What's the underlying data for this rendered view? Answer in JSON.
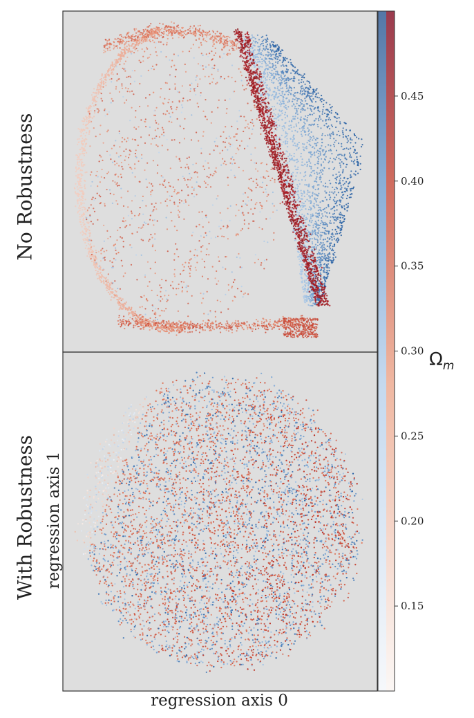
{
  "chart_data": [
    {
      "type": "scatter",
      "panel_label": "No Robustness",
      "description_points": "dense latent embedding forming a rounded shape with a sharp red ridge",
      "xlabel": "",
      "ylabel": "",
      "grid": false
    },
    {
      "type": "scatter",
      "panel_label": "With Robustness",
      "xlabel": "regression axis 0",
      "ylabel": "regression axis 1",
      "grid": false
    }
  ],
  "colorbar": {
    "label_main": "Ω",
    "label_sub": "m",
    "ticks": [
      "0.15",
      "0.20",
      "0.25",
      "0.30",
      "0.35",
      "0.40",
      "0.45"
    ],
    "tick_values": [
      0.15,
      0.2,
      0.25,
      0.3,
      0.35,
      0.4,
      0.45
    ],
    "range": [
      0.1,
      0.5
    ],
    "colors": {
      "low": "#f7f4f2",
      "mid": "#d9826e",
      "high": "#b2182b",
      "blue_high": "#2b5c9a"
    }
  },
  "colors": {
    "panel_bg": "#dedede",
    "red": "#c0392b",
    "blue": "#2f6db0",
    "pale": "#f3e6e0"
  }
}
